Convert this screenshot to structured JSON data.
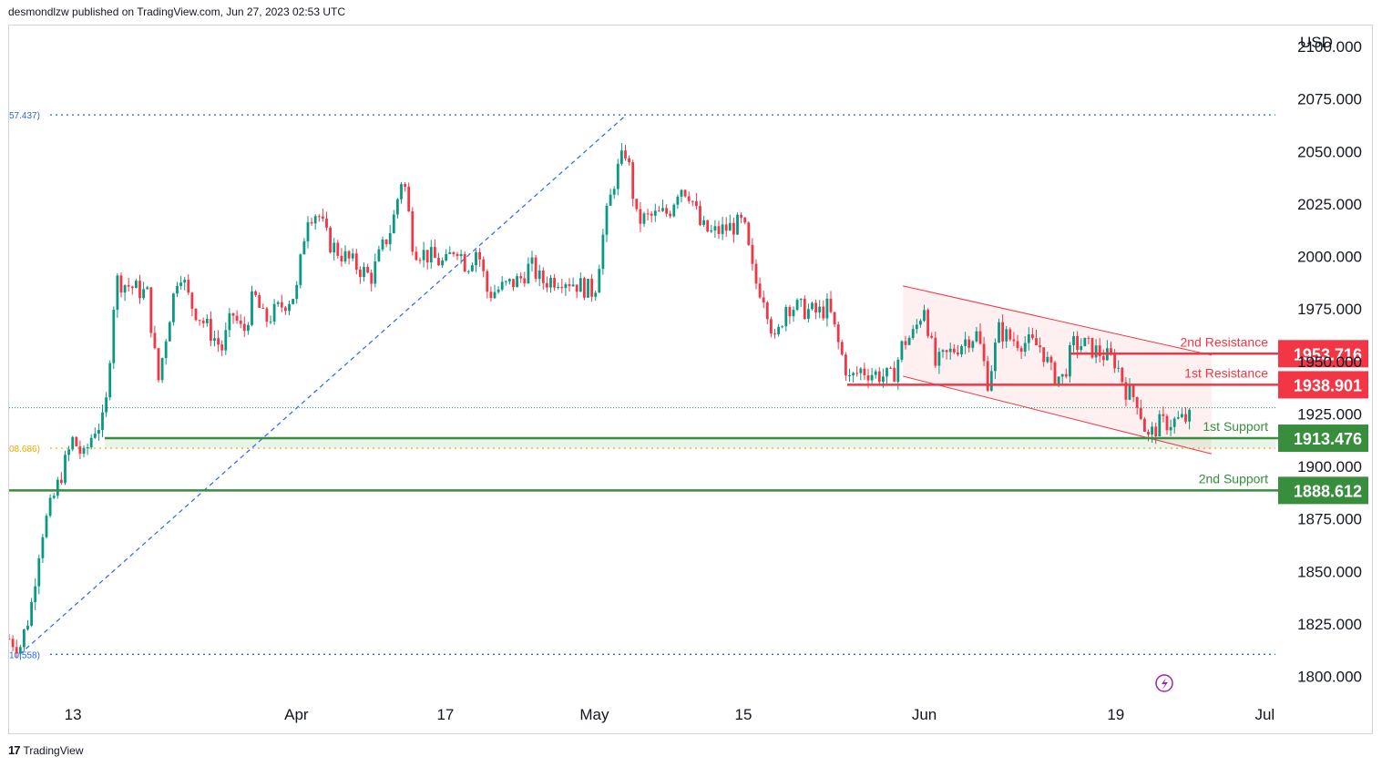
{
  "header": {
    "published": "desmondlzw published on TradingView.com, Jun 27, 2023 02:53 UTC"
  },
  "footer": {
    "brand": "TradingView",
    "logo_glyph": "17"
  },
  "chart_data": {
    "type": "candlestick",
    "currency_label": "USD",
    "y_range": [
      1789,
      2110
    ],
    "y_ticks": [
      "1800.000",
      "1825.000",
      "1850.000",
      "1875.000",
      "1900.000",
      "1925.000",
      "1950.000",
      "1975.000",
      "2000.000",
      "2025.000",
      "2050.000",
      "2075.000",
      "2100.000"
    ],
    "x_range": [
      "2023-03-07",
      "2023-07-04"
    ],
    "x_ticks": [
      {
        "label": "13",
        "date": "2023-03-13"
      },
      {
        "label": "Apr",
        "date": "2023-04-03"
      },
      {
        "label": "17",
        "date": "2023-04-17"
      },
      {
        "label": "May",
        "date": "2023-05-01"
      },
      {
        "label": "15",
        "date": "2023-05-15"
      },
      {
        "label": "Jun",
        "date": "2023-06-01"
      },
      {
        "label": "19",
        "date": "2023-06-19"
      },
      {
        "label": "Jul",
        "date": "2023-07-03"
      }
    ],
    "candle_colors": {
      "up": "#089981",
      "down": "#f23645"
    },
    "close_path": [
      [
        "2023-03-07",
        1818
      ],
      [
        "2023-03-08",
        1814
      ],
      [
        "2023-03-09",
        1831
      ],
      [
        "2023-03-10",
        1867
      ],
      [
        "2023-03-13",
        1913
      ],
      [
        "2023-03-14",
        1904
      ],
      [
        "2023-03-15",
        1918
      ],
      [
        "2023-03-16",
        1922
      ],
      [
        "2023-03-17",
        1989
      ],
      [
        "2023-03-20",
        1982
      ],
      [
        "2023-03-21",
        1940
      ],
      [
        "2023-03-22",
        1970
      ],
      [
        "2023-03-23",
        1995
      ],
      [
        "2023-03-24",
        1978
      ],
      [
        "2023-03-27",
        1956
      ],
      [
        "2023-03-28",
        1973
      ],
      [
        "2023-03-29",
        1963
      ],
      [
        "2023-03-30",
        1982
      ],
      [
        "2023-03-31",
        1969
      ],
      [
        "2023-04-03",
        1983
      ],
      [
        "2023-04-04",
        2020
      ],
      [
        "2023-04-05",
        2021
      ],
      [
        "2023-04-06",
        2007
      ],
      [
        "2023-04-07",
        2002
      ],
      [
        "2023-04-10",
        1990
      ],
      [
        "2023-04-11",
        2003
      ],
      [
        "2023-04-12",
        2015
      ],
      [
        "2023-04-13",
        2040
      ],
      [
        "2023-04-14",
        2004
      ],
      [
        "2023-04-17",
        1996
      ],
      [
        "2023-04-18",
        2006
      ],
      [
        "2023-04-19",
        1995
      ],
      [
        "2023-04-20",
        2004
      ],
      [
        "2023-04-21",
        1982
      ],
      [
        "2023-04-24",
        1989
      ],
      [
        "2023-04-25",
        1996
      ],
      [
        "2023-04-26",
        1988
      ],
      [
        "2023-04-27",
        1989
      ],
      [
        "2023-04-28",
        1990
      ],
      [
        "2023-05-01",
        1983
      ],
      [
        "2023-05-02",
        2016
      ],
      [
        "2023-05-03",
        2039
      ],
      [
        "2023-05-04",
        2051
      ],
      [
        "2023-05-05",
        2017
      ],
      [
        "2023-05-08",
        2021
      ],
      [
        "2023-05-09",
        2034
      ],
      [
        "2023-05-10",
        2030
      ],
      [
        "2023-05-11",
        2014
      ],
      [
        "2023-05-12",
        2011
      ],
      [
        "2023-05-15",
        2016
      ],
      [
        "2023-05-16",
        1989
      ],
      [
        "2023-05-17",
        1981
      ],
      [
        "2023-05-18",
        1958
      ],
      [
        "2023-05-19",
        1977
      ],
      [
        "2023-05-22",
        1973
      ],
      [
        "2023-05-23",
        1976
      ],
      [
        "2023-05-24",
        1957
      ],
      [
        "2023-05-25",
        1941
      ],
      [
        "2023-05-26",
        1946
      ],
      [
        "2023-05-29",
        1942
      ],
      [
        "2023-05-30",
        1959
      ],
      [
        "2023-05-31",
        1963
      ],
      [
        "2023-06-01",
        1977
      ],
      [
        "2023-06-02",
        1948
      ],
      [
        "2023-06-05",
        1961
      ],
      [
        "2023-06-06",
        1963
      ],
      [
        "2023-06-07",
        1940
      ],
      [
        "2023-06-08",
        1965
      ],
      [
        "2023-06-09",
        1961
      ],
      [
        "2023-06-12",
        1957
      ],
      [
        "2023-06-13",
        1944
      ],
      [
        "2023-06-14",
        1942
      ],
      [
        "2023-06-15",
        1958
      ],
      [
        "2023-06-16",
        1958
      ],
      [
        "2023-06-19",
        1950
      ],
      [
        "2023-06-20",
        1936
      ],
      [
        "2023-06-21",
        1932
      ],
      [
        "2023-06-22",
        1913
      ],
      [
        "2023-06-23",
        1920
      ],
      [
        "2023-06-26",
        1923
      ]
    ],
    "levels": [
      {
        "name": "2nd Resistance",
        "value": 1953.716,
        "label": "1953.716",
        "kind": "resistance"
      },
      {
        "name": "1st Resistance",
        "value": 1938.901,
        "label": "1938.901",
        "kind": "resistance"
      },
      {
        "name": "1st Support",
        "value": 1913.476,
        "label": "1913.476",
        "kind": "support"
      },
      {
        "name": "2nd Support",
        "value": 1888.612,
        "label": "1888.612",
        "kind": "support"
      }
    ],
    "fib_levels": [
      {
        "label": "57.437)",
        "value": 2067.437
      },
      {
        "label": "08.686)",
        "value": 1908.686
      },
      {
        "label": "10.558)",
        "value": 1810.558
      }
    ],
    "current_price_line": 1928,
    "fib_trend_line": {
      "from": [
        "2023-03-08",
        1810.558
      ],
      "to": [
        "2023-05-04",
        2067.437
      ]
    },
    "channel": {
      "upper": [
        [
          "2023-05-30",
          1986
        ],
        [
          "2023-06-28",
          1953
        ]
      ],
      "lower": [
        [
          "2023-05-30",
          1943
        ],
        [
          "2023-06-28",
          1906
        ]
      ]
    },
    "colors": {
      "resistance": "#f23645",
      "support": "#388e3c",
      "fib_blue": "#2962ff",
      "fib_gold": "#f2a900",
      "channel_fill": "rgba(242,54,69,0.08)",
      "support_zone": "rgba(76,175,80,0.12)"
    },
    "title": "",
    "xlabel": "",
    "ylabel": ""
  }
}
